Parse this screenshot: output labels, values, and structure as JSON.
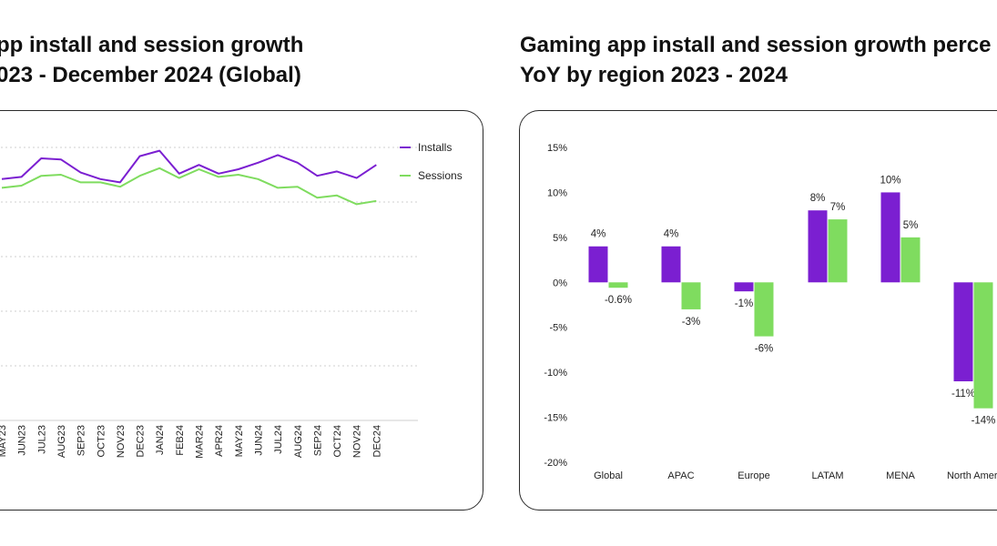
{
  "titles": {
    "left": [
      "pp install and session growth",
      "023 - December 2024 (Global)"
    ],
    "right": [
      "Gaming app install and session growth perce",
      "YoY by region 2023 - 2024"
    ]
  },
  "colors": {
    "installs": "#7b1fd1",
    "sessions": "#7fdc5f",
    "grid": "#cfcfcf"
  },
  "chart_data": [
    {
      "type": "line",
      "title": "pp install and session growth 023 - December 2024 (Global)",
      "x": [
        "MAY23",
        "JUN23",
        "JUL23",
        "AUG23",
        "SEP23",
        "OCT23",
        "NOV23",
        "DEC23",
        "JAN24",
        "FEB24",
        "MAR24",
        "APR24",
        "MAY24",
        "JUN24",
        "JUL24",
        "AUG24",
        "SEP24",
        "OCT24",
        "NOV24",
        "DEC24"
      ],
      "series": [
        {
          "name": "Installs",
          "values": [
            2.1,
            2.3,
            4.0,
            3.9,
            2.7,
            2.1,
            1.8,
            4.2,
            4.7,
            2.6,
            3.4,
            2.6,
            3.0,
            3.6,
            4.3,
            3.6,
            2.4,
            2.8,
            2.2,
            3.4
          ]
        },
        {
          "name": "Sessions",
          "values": [
            1.3,
            1.5,
            2.4,
            2.5,
            1.8,
            1.8,
            1.4,
            2.4,
            3.1,
            2.2,
            3.0,
            2.3,
            2.5,
            2.1,
            1.3,
            1.4,
            0.4,
            0.6,
            -0.2,
            0.1
          ]
        }
      ],
      "ylim": [
        -20,
        5
      ],
      "grid": true,
      "legend": "top-right"
    },
    {
      "type": "bar",
      "title": "Gaming app install and session growth perce YoY by region 2023 - 2024",
      "categories": [
        "Global",
        "APAC",
        "Europe",
        "LATAM",
        "MENA",
        "North Ameri"
      ],
      "series": [
        {
          "name": "Installs",
          "values": [
            4,
            4,
            -1,
            8,
            10,
            -11
          ],
          "labels": [
            "4%",
            "4%",
            "-1%",
            "8%",
            "10%",
            "-11%"
          ]
        },
        {
          "name": "Sessions",
          "values": [
            -0.6,
            -3,
            -6,
            7,
            5,
            -14
          ],
          "labels": [
            "-0.6%",
            "-3%",
            "-6%",
            "7%",
            "5%",
            "-14%"
          ]
        }
      ],
      "ylim": [
        -20,
        15
      ],
      "yticks": [
        "15%",
        "10%",
        "5%",
        "0%",
        "-5%",
        "-10%",
        "-15%",
        "-20%"
      ],
      "grid": false
    }
  ]
}
